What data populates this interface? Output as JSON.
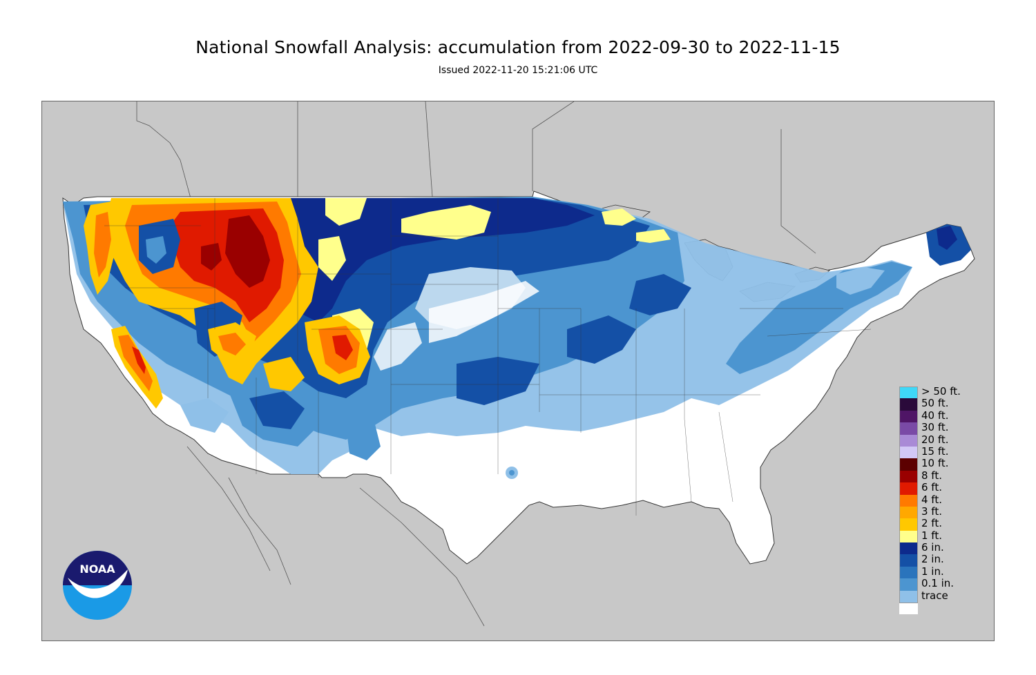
{
  "header": {
    "title": "National Snowfall Analysis: accumulation from 2022-09-30 to 2022-11-15",
    "subtitle": "Issued 2022-11-20 15:21:06 UTC"
  },
  "logo": {
    "text": "NOAA"
  },
  "legend": {
    "items": [
      {
        "label": "> 50 ft.",
        "color": "#3fd8f8"
      },
      {
        "label": "50 ft.",
        "color": "#2a0a3a"
      },
      {
        "label": "40 ft.",
        "color": "#4f1566"
      },
      {
        "label": "30 ft.",
        "color": "#7a4aa6"
      },
      {
        "label": "20 ft.",
        "color": "#a98ad6"
      },
      {
        "label": "15 ft.",
        "color": "#d2c8f6"
      },
      {
        "label": "10 ft.",
        "color": "#5c0000"
      },
      {
        "label": "8 ft.",
        "color": "#9a0000"
      },
      {
        "label": "6 ft.",
        "color": "#e01a00"
      },
      {
        "label": "4 ft.",
        "color": "#ff7a00"
      },
      {
        "label": "3 ft.",
        "color": "#ffa800"
      },
      {
        "label": "2 ft.",
        "color": "#ffc800"
      },
      {
        "label": "1 ft.",
        "color": "#ffff8c"
      },
      {
        "label": "6 in.",
        "color": "#0d2a8c"
      },
      {
        "label": "2 in.",
        "color": "#1450a6"
      },
      {
        "label": "1 in.",
        "color": "#2a74bc"
      },
      {
        "label": "0.1 in.",
        "color": "#4c95d0"
      },
      {
        "label": "trace",
        "color": "#8fc0e8"
      },
      {
        "label": "",
        "color": "#ffffff"
      }
    ]
  },
  "colors": {
    "ocean": "#c8c8c8",
    "land": "#ffffff",
    "trace": "#bcd8ee",
    "light": "#8fc0e8",
    "mid": "#4c95d0",
    "mid2": "#2a74bc",
    "dark": "#1450a6",
    "darkest": "#0d2a8c",
    "yellow": "#ffff8c",
    "gold": "#ffc800",
    "orange": "#ff7a00",
    "red": "#e01a00",
    "darkred": "#9a0000"
  }
}
